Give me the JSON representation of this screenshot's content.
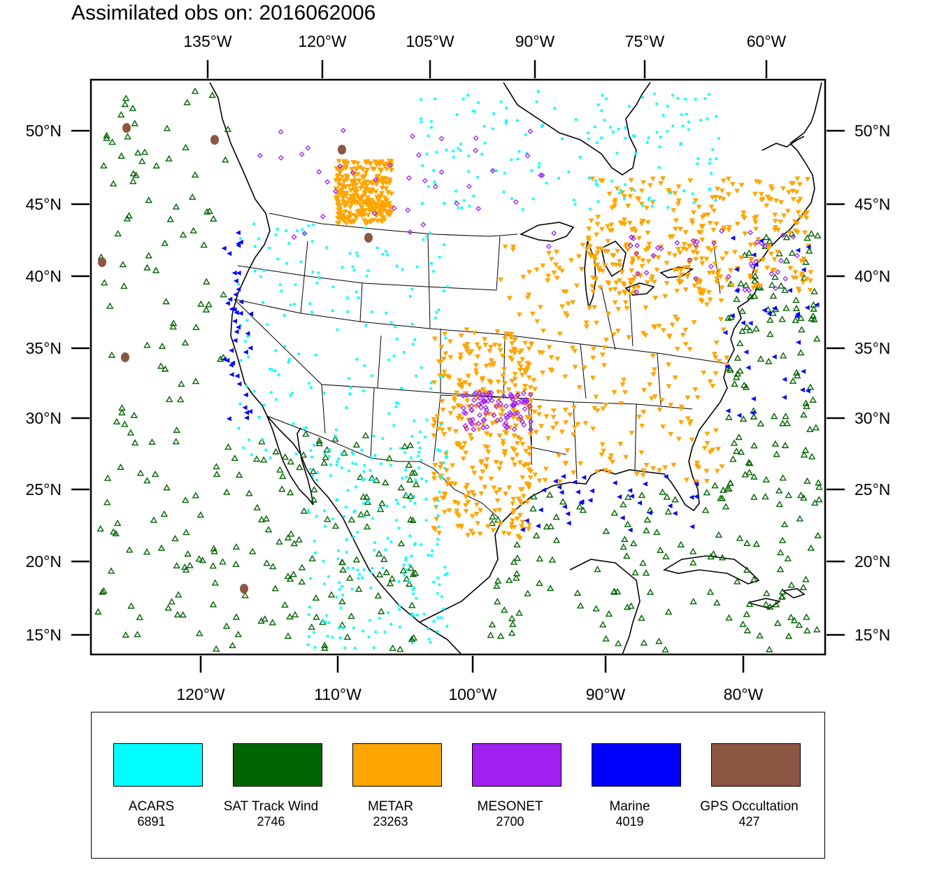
{
  "title": "Assimilated obs on: 2016062006",
  "axes": {
    "top_lon_labels": [
      "135°W",
      "120°W",
      "105°W",
      "90°W",
      "75°W",
      "60°W"
    ],
    "bottom_lon_labels": [
      "120°W",
      "110°W",
      "100°W",
      "90°W",
      "80°W"
    ],
    "left_lat_labels": [
      "50°N",
      "45°N",
      "40°N",
      "35°N",
      "30°N",
      "25°N",
      "20°N",
      "15°N"
    ],
    "right_lat_labels": [
      "50°N",
      "45°N",
      "40°N",
      "35°N",
      "30°N",
      "25°N",
      "20°N",
      "15°N"
    ]
  },
  "legend": [
    {
      "name": "ACARS",
      "count": "6891",
      "color": "#00ffff",
      "marker": "square"
    },
    {
      "name": "SAT Track Wind",
      "count": "2746",
      "color": "#006400",
      "marker": "triangle-up-open"
    },
    {
      "name": "METAR",
      "count": "23263",
      "color": "#ffa500",
      "marker": "triangle-down"
    },
    {
      "name": "MESONET",
      "count": "2700",
      "color": "#a020f0",
      "marker": "diamond"
    },
    {
      "name": "Marine",
      "count": "4019",
      "color": "#0000ff",
      "marker": "triangle-left"
    },
    {
      "name": "GPS Occultation",
      "count": "427",
      "color": "#8b5742",
      "marker": "blob"
    }
  ]
}
